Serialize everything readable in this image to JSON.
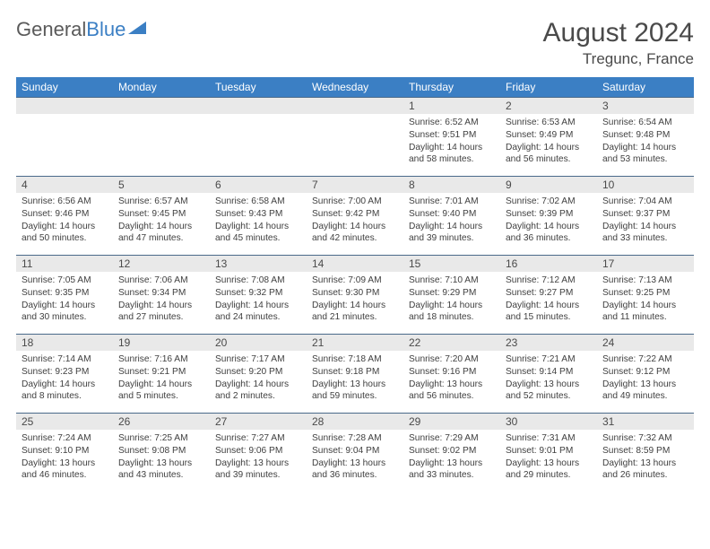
{
  "logo": {
    "text1": "General",
    "text2": "Blue"
  },
  "title": "August 2024",
  "location": "Tregunc, France",
  "colors": {
    "header_bg": "#3b7fc4",
    "header_text": "#ffffff",
    "daynum_bg": "#e9e9e9",
    "cell_border": "#4a6a8a",
    "text": "#404040",
    "title_text": "#4a4a4a"
  },
  "days_of_week": [
    "Sunday",
    "Monday",
    "Tuesday",
    "Wednesday",
    "Thursday",
    "Friday",
    "Saturday"
  ],
  "weeks": [
    [
      null,
      null,
      null,
      null,
      {
        "n": "1",
        "sr": "6:52 AM",
        "ss": "9:51 PM",
        "dl": "14 hours and 58 minutes."
      },
      {
        "n": "2",
        "sr": "6:53 AM",
        "ss": "9:49 PM",
        "dl": "14 hours and 56 minutes."
      },
      {
        "n": "3",
        "sr": "6:54 AM",
        "ss": "9:48 PM",
        "dl": "14 hours and 53 minutes."
      }
    ],
    [
      {
        "n": "4",
        "sr": "6:56 AM",
        "ss": "9:46 PM",
        "dl": "14 hours and 50 minutes."
      },
      {
        "n": "5",
        "sr": "6:57 AM",
        "ss": "9:45 PM",
        "dl": "14 hours and 47 minutes."
      },
      {
        "n": "6",
        "sr": "6:58 AM",
        "ss": "9:43 PM",
        "dl": "14 hours and 45 minutes."
      },
      {
        "n": "7",
        "sr": "7:00 AM",
        "ss": "9:42 PM",
        "dl": "14 hours and 42 minutes."
      },
      {
        "n": "8",
        "sr": "7:01 AM",
        "ss": "9:40 PM",
        "dl": "14 hours and 39 minutes."
      },
      {
        "n": "9",
        "sr": "7:02 AM",
        "ss": "9:39 PM",
        "dl": "14 hours and 36 minutes."
      },
      {
        "n": "10",
        "sr": "7:04 AM",
        "ss": "9:37 PM",
        "dl": "14 hours and 33 minutes."
      }
    ],
    [
      {
        "n": "11",
        "sr": "7:05 AM",
        "ss": "9:35 PM",
        "dl": "14 hours and 30 minutes."
      },
      {
        "n": "12",
        "sr": "7:06 AM",
        "ss": "9:34 PM",
        "dl": "14 hours and 27 minutes."
      },
      {
        "n": "13",
        "sr": "7:08 AM",
        "ss": "9:32 PM",
        "dl": "14 hours and 24 minutes."
      },
      {
        "n": "14",
        "sr": "7:09 AM",
        "ss": "9:30 PM",
        "dl": "14 hours and 21 minutes."
      },
      {
        "n": "15",
        "sr": "7:10 AM",
        "ss": "9:29 PM",
        "dl": "14 hours and 18 minutes."
      },
      {
        "n": "16",
        "sr": "7:12 AM",
        "ss": "9:27 PM",
        "dl": "14 hours and 15 minutes."
      },
      {
        "n": "17",
        "sr": "7:13 AM",
        "ss": "9:25 PM",
        "dl": "14 hours and 11 minutes."
      }
    ],
    [
      {
        "n": "18",
        "sr": "7:14 AM",
        "ss": "9:23 PM",
        "dl": "14 hours and 8 minutes."
      },
      {
        "n": "19",
        "sr": "7:16 AM",
        "ss": "9:21 PM",
        "dl": "14 hours and 5 minutes."
      },
      {
        "n": "20",
        "sr": "7:17 AM",
        "ss": "9:20 PM",
        "dl": "14 hours and 2 minutes."
      },
      {
        "n": "21",
        "sr": "7:18 AM",
        "ss": "9:18 PM",
        "dl": "13 hours and 59 minutes."
      },
      {
        "n": "22",
        "sr": "7:20 AM",
        "ss": "9:16 PM",
        "dl": "13 hours and 56 minutes."
      },
      {
        "n": "23",
        "sr": "7:21 AM",
        "ss": "9:14 PM",
        "dl": "13 hours and 52 minutes."
      },
      {
        "n": "24",
        "sr": "7:22 AM",
        "ss": "9:12 PM",
        "dl": "13 hours and 49 minutes."
      }
    ],
    [
      {
        "n": "25",
        "sr": "7:24 AM",
        "ss": "9:10 PM",
        "dl": "13 hours and 46 minutes."
      },
      {
        "n": "26",
        "sr": "7:25 AM",
        "ss": "9:08 PM",
        "dl": "13 hours and 43 minutes."
      },
      {
        "n": "27",
        "sr": "7:27 AM",
        "ss": "9:06 PM",
        "dl": "13 hours and 39 minutes."
      },
      {
        "n": "28",
        "sr": "7:28 AM",
        "ss": "9:04 PM",
        "dl": "13 hours and 36 minutes."
      },
      {
        "n": "29",
        "sr": "7:29 AM",
        "ss": "9:02 PM",
        "dl": "13 hours and 33 minutes."
      },
      {
        "n": "30",
        "sr": "7:31 AM",
        "ss": "9:01 PM",
        "dl": "13 hours and 29 minutes."
      },
      {
        "n": "31",
        "sr": "7:32 AM",
        "ss": "8:59 PM",
        "dl": "13 hours and 26 minutes."
      }
    ]
  ],
  "labels": {
    "sunrise": "Sunrise:",
    "sunset": "Sunset:",
    "daylight": "Daylight:"
  }
}
